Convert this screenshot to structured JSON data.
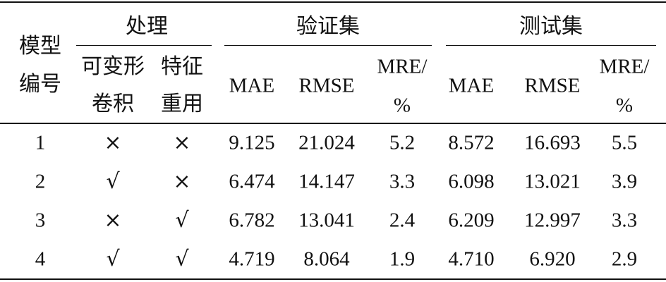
{
  "table": {
    "header": {
      "model_id": [
        "模型",
        "编号"
      ],
      "processing": "处理",
      "deformable_conv": [
        "可变形",
        "卷积"
      ],
      "feature_reuse": [
        "特征",
        "重用"
      ],
      "validation": "验证集",
      "test": "测试集",
      "validation_metrics": [
        "MAE",
        "RMSE",
        [
          "MRE/",
          "%"
        ]
      ],
      "test_metrics": [
        "MAE",
        "RMSE",
        [
          "MRE/",
          "%"
        ]
      ]
    },
    "rows": [
      [
        "1",
        "×",
        "×",
        "9.125",
        "21.024",
        "5.2",
        "8.572",
        "16.693",
        "5.5"
      ],
      [
        "2",
        "√",
        "×",
        "6.474",
        "14.147",
        "3.3",
        "6.098",
        "13.021",
        "3.9"
      ],
      [
        "3",
        "×",
        "√",
        "6.782",
        "13.041",
        "2.4",
        "6.209",
        "12.997",
        "3.3"
      ],
      [
        "4",
        "√",
        "√",
        "4.719",
        "8.064",
        "1.9",
        "4.710",
        "6.920",
        "2.9"
      ]
    ]
  }
}
